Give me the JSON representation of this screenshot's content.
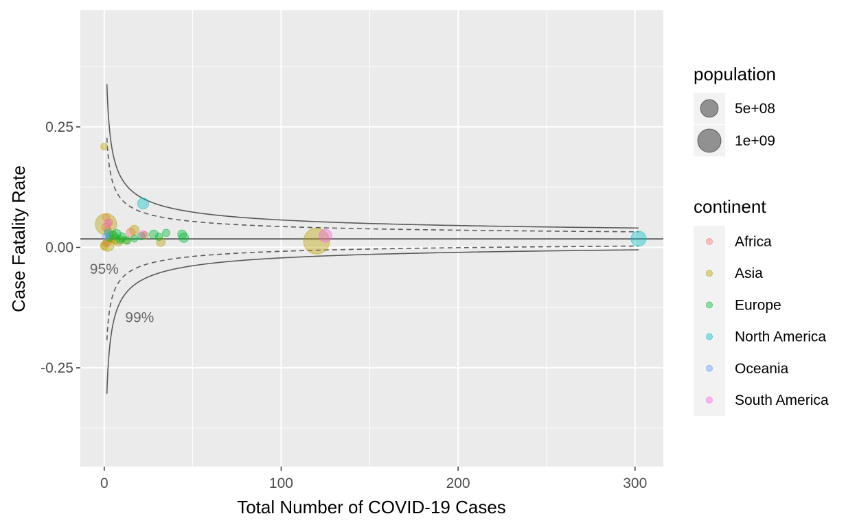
{
  "chart_data": {
    "type": "scatter",
    "title": "",
    "xlabel": "Total Number of COVID-19 Cases",
    "ylabel": "Case Fatality Rate",
    "xlim": [
      -13.5,
      316
    ],
    "ylim": [
      -0.455,
      0.492
    ],
    "x_ticks": [
      0,
      100,
      200,
      300
    ],
    "x_tick_labels": [
      "0",
      "100",
      "200",
      "300"
    ],
    "y_ticks": [
      0.25,
      0.0,
      -0.25
    ],
    "y_tick_labels": [
      "0.25",
      "0.00",
      "-0.25"
    ],
    "grid": true,
    "reference_rate": 0.0175,
    "funnel": {
      "x_range": [
        1.5,
        302
      ],
      "limits": [
        {
          "level": "95%",
          "z": 1.96,
          "style": "dashed"
        },
        {
          "level": "99%",
          "z": 3.0,
          "style": "solid"
        }
      ]
    },
    "annotations": [
      {
        "text": "95%",
        "x": 0,
        "y": -0.055
      },
      {
        "text": "99%",
        "x": 20,
        "y": -0.155
      }
    ],
    "legend_position": "right",
    "legend": {
      "size_title": "population",
      "size_entries": [
        {
          "label": "5e+08",
          "value": 500000000
        },
        {
          "label": "1e+09",
          "value": 1000000000
        }
      ],
      "color_title": "continent",
      "color_entries": [
        {
          "label": "Africa",
          "color": "#F8766D"
        },
        {
          "label": "Asia",
          "color": "#B79F00"
        },
        {
          "label": "Europe",
          "color": "#00BA38"
        },
        {
          "label": "North America",
          "color": "#00BFC4"
        },
        {
          "label": "Oceania",
          "color": "#619CFF"
        },
        {
          "label": "South America",
          "color": "#F564E3"
        }
      ]
    },
    "series": [
      {
        "continent": "Africa",
        "points": [
          {
            "x": 1,
            "y": 0.042,
            "pop": 50000000
          },
          {
            "x": 2,
            "y": 0.036,
            "pop": 30000000
          },
          {
            "x": 3,
            "y": 0.052,
            "pop": 20000000
          },
          {
            "x": 1,
            "y": 0.062,
            "pop": 25000000
          },
          {
            "x": 2,
            "y": 0.012,
            "pop": 45000000
          },
          {
            "x": 3,
            "y": 0.024,
            "pop": 40000000
          },
          {
            "x": 1,
            "y": 0.008,
            "pop": 20000000
          },
          {
            "x": 4,
            "y": 0.018,
            "pop": 30000000
          },
          {
            "x": 15,
            "y": 0.031,
            "pop": 60000000
          }
        ]
      },
      {
        "continent": "Asia",
        "points": [
          {
            "x": 0,
            "y": 0.209,
            "pop": 20000000
          },
          {
            "x": 1,
            "y": 0.048,
            "pop": 800000000
          },
          {
            "x": 2,
            "y": 0.005,
            "pop": 200000000
          },
          {
            "x": 0,
            "y": 0.003,
            "pop": 40000000
          },
          {
            "x": 4,
            "y": 0.022,
            "pop": 150000000
          },
          {
            "x": 6,
            "y": 0.017,
            "pop": 100000000
          },
          {
            "x": 8,
            "y": 0.012,
            "pop": 60000000
          },
          {
            "x": 17,
            "y": 0.036,
            "pop": 80000000
          },
          {
            "x": 12,
            "y": 0.015,
            "pop": 40000000
          },
          {
            "x": 32,
            "y": 0.011,
            "pop": 60000000
          },
          {
            "x": 120,
            "y": 0.013,
            "pop": 1300000000
          },
          {
            "x": 23,
            "y": 0.025,
            "pop": 30000000
          }
        ]
      },
      {
        "continent": "Europe",
        "points": [
          {
            "x": 5,
            "y": 0.025,
            "pop": 60000000
          },
          {
            "x": 7,
            "y": 0.028,
            "pop": 60000000
          },
          {
            "x": 9,
            "y": 0.016,
            "pop": 40000000
          },
          {
            "x": 10,
            "y": 0.021,
            "pop": 60000000
          },
          {
            "x": 13,
            "y": 0.014,
            "pop": 30000000
          },
          {
            "x": 17,
            "y": 0.018,
            "pop": 20000000
          },
          {
            "x": 21,
            "y": 0.023,
            "pop": 30000000
          },
          {
            "x": 28,
            "y": 0.027,
            "pop": 60000000
          },
          {
            "x": 31,
            "y": 0.022,
            "pop": 30000000
          },
          {
            "x": 35,
            "y": 0.03,
            "pop": 30000000
          },
          {
            "x": 44,
            "y": 0.027,
            "pop": 60000000
          },
          {
            "x": 45,
            "y": 0.02,
            "pop": 80000000
          },
          {
            "x": 3,
            "y": 0.019,
            "pop": 20000000
          }
        ]
      },
      {
        "continent": "North America",
        "points": [
          {
            "x": 22,
            "y": 0.091,
            "pop": 130000000
          },
          {
            "x": 302,
            "y": 0.018,
            "pop": 330000000
          },
          {
            "x": 2,
            "y": 0.03,
            "pop": 30000000
          }
        ]
      },
      {
        "continent": "Oceania",
        "points": [
          {
            "x": 1,
            "y": 0.022,
            "pop": 20000000
          }
        ]
      },
      {
        "continent": "South America",
        "points": [
          {
            "x": 125,
            "y": 0.024,
            "pop": 210000000
          },
          {
            "x": 2,
            "y": 0.05,
            "pop": 30000000
          },
          {
            "x": 22,
            "y": 0.027,
            "pop": 30000000
          }
        ]
      }
    ]
  }
}
